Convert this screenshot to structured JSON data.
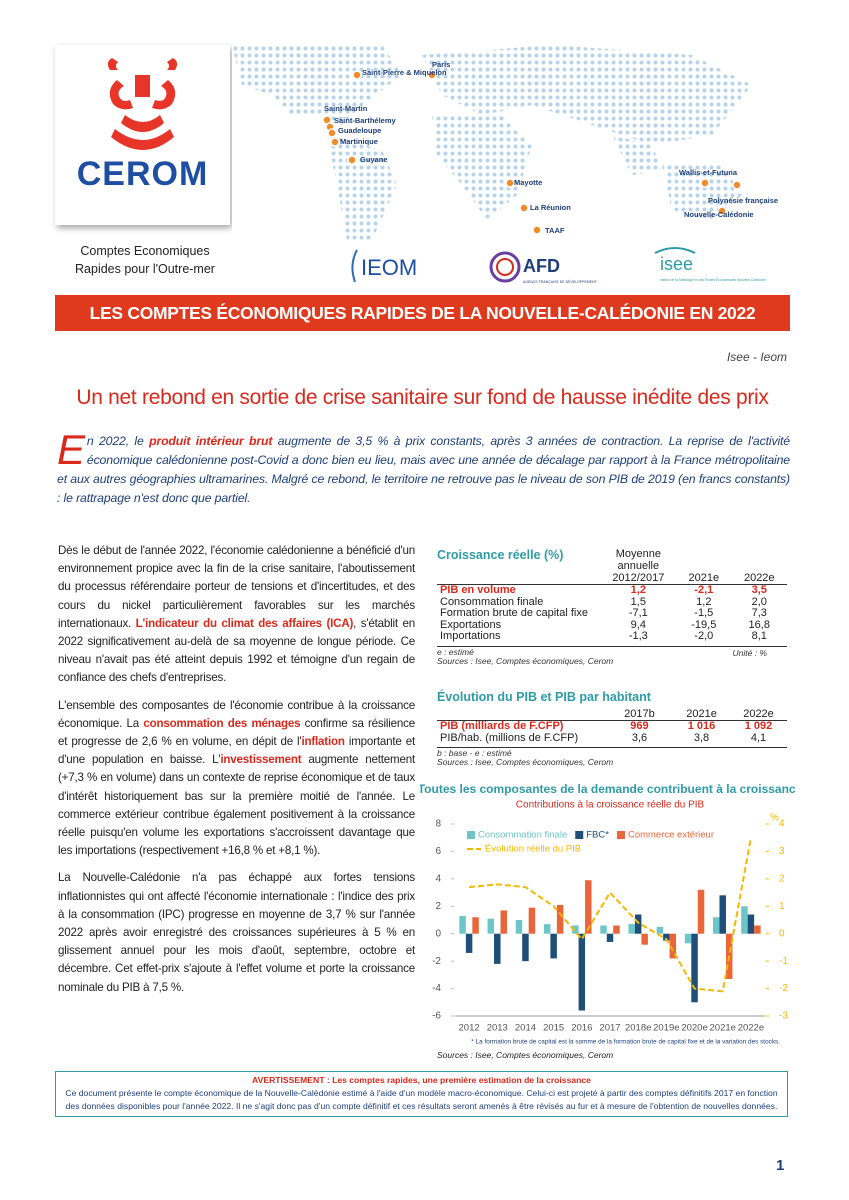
{
  "header": {
    "logo_text": "CEROM",
    "tagline": [
      "Comptes Economiques",
      "Rapides pour l'Outre-mer"
    ],
    "map_places": [
      "Saint-Pierre & Miquelon",
      "Paris",
      "Saint-Martin",
      "Saint-Barthélemy",
      "Guadeloupe",
      "Martinique",
      "Guyane",
      "Mayotte",
      "La Réunion",
      "TAAF",
      "Wallis-et-Futuna",
      "Polynésie française",
      "Nouvelle-Calédonie"
    ],
    "partner_logos": [
      "IEOM",
      "AFD",
      "AGENCE FRANÇAISE DE DÉVELOPPEMENT",
      "isee",
      "Institut de la Statistique et des Études Économiques Nouvelle-Calédonie"
    ]
  },
  "banner": "LES COMPTES ÉCONOMIQUES RAPIDES DE LA NOUVELLE-CALÉDONIE EN 2022",
  "byline": "Isee - Ieom",
  "headline": "Un net rebond en sortie de crise sanitaire sur fond de hausse inédite des prix",
  "intro": {
    "dropcap": "E",
    "segments": [
      "n 2022, le ",
      "produit intérieur brut",
      " augmente de 3,5 % à prix constants, après 3 années de contraction. La reprise de l'activité économique calédonienne post-Covid a donc bien eu lieu, mais avec une année de décalage par rapport à la France métropolitaine et aux autres géographies ultramarines. Malgré ce rebond, le territoire ne retrouve pas le niveau de son PIB de 2019 (en francs constants) : le rattrapage n'est donc que partiel."
    ]
  },
  "body": [
    [
      "Dès le début de l'année 2022, l'économie calédonienne a bénéficié d'un environnement propice avec la fin de la crise sanitaire, l'aboutissement du processus référendaire porteur de tensions et d'incertitudes, et des cours du nickel particulièrement favorables sur les marchés internationaux. ",
      "L'indicateur du climat des affaires (ICA)",
      ", s'établit en 2022 significativement au-delà de sa moyenne de longue période. Ce niveau n'avait pas été atteint depuis 1992 et témoigne d'un regain de confiance des chefs d'entreprises."
    ],
    [
      "L'ensemble des composantes de l'économie contribue à la croissance économique. La ",
      "consommation des ménages",
      " confirme sa résilience et progresse de 2,6 % en volume, en dépit de l'",
      "inflation",
      " importante et d'une population en baisse. L'",
      "investissement",
      " augmente nettement (+7,3 % en volume) dans un contexte de reprise économique et de taux d'intérêt historiquement bas sur la première moitié de l'année. Le commerce extérieur contribue également positivement à la croissance réelle puisqu'en volume les exportations s'accroissent davantage que les importations (respectivement +16,8 % et +8,1 %)."
    ],
    [
      "La Nouvelle-Calédonie n'a pas échappé aux fortes tensions inflationnistes qui ont affecté l'économie internationale : l'indice des prix à la consommation (IPC) progresse en moyenne de 3,7 % sur l'année 2022 après avoir enregistré des croissances supérieures à 5 % en glissement annuel pour les mois d'août, septembre, octobre et décembre. Cet effet-prix s'ajoute à l'effet volume et porte la croissance nominale du PIB à 7,5 %."
    ]
  ],
  "table1": {
    "title": "Croissance réelle (%)",
    "headers": [
      "Moyenne annuelle 2012/2017",
      "2021e",
      "2022e"
    ],
    "rows": [
      [
        "PIB en volume",
        "1,2",
        "-2,1",
        "3,5"
      ],
      [
        "Consommation finale",
        "1,5",
        "1,2",
        "2,0"
      ],
      [
        "Formation brute de capital fixe",
        "-7,1",
        "-1,5",
        "7,3"
      ],
      [
        "Exportations",
        "9,4",
        "-19,5",
        "16,8"
      ],
      [
        "Importations",
        "-1,3",
        "-2,0",
        "8,1"
      ]
    ],
    "notes": [
      "e : estimé",
      "Sources : Isee, Comptes économiques, Cerom"
    ],
    "unit": "Unité : %"
  },
  "table2": {
    "title": "Évolution du PIB et PIB par habitant",
    "headers": [
      "2017b",
      "2021e",
      "2022e"
    ],
    "rows": [
      [
        "PIB (milliards de F.CFP)",
        "969",
        "1 016",
        "1 092"
      ],
      [
        "PIB/hab. (millions de F.CFP)",
        "3,6",
        "3,8",
        "4,1"
      ]
    ],
    "notes": [
      "b : base - e : estimé",
      "Sources : Isee, Comptes économiques, Cerom"
    ]
  },
  "chart_data": {
    "type": "bar",
    "title": "Toutes les composantes de la demande contribuent à la croissance",
    "subtitle": "Contributions à la croissance réelle du PIB",
    "categories": [
      "2012",
      "2013",
      "2014",
      "2015",
      "2016",
      "2017",
      "2018e",
      "2019e",
      "2020e",
      "2021e",
      "2022e"
    ],
    "series": [
      {
        "name": "Consommation finale",
        "color": "#6cc5c8",
        "values": [
          1.3,
          1.1,
          1.0,
          0.7,
          0.6,
          0.6,
          0.7,
          0.5,
          -0.7,
          1.2,
          2.0
        ]
      },
      {
        "name": "FBC*",
        "color": "#1f4e79",
        "values": [
          -1.4,
          -2.2,
          -2.0,
          -1.8,
          -5.6,
          -0.6,
          1.4,
          -0.5,
          -5.0,
          2.8,
          1.4
        ]
      },
      {
        "name": "Commerce extérieur",
        "color": "#e8663a",
        "values": [
          1.2,
          1.7,
          1.9,
          2.1,
          3.9,
          0.6,
          -0.8,
          -1.8,
          3.2,
          -3.3,
          0.6
        ]
      },
      {
        "name": "Évolution réelle du PIB",
        "color": "#f5b800",
        "type": "line",
        "dashed": true,
        "axis": "y2",
        "values": [
          1.7,
          1.8,
          1.7,
          1.0,
          -0.2,
          1.5,
          0.4,
          -0.2,
          -2.0,
          -2.1,
          3.5
        ]
      }
    ],
    "ylim": [
      -6,
      8
    ],
    "yticks": [
      -6,
      -4,
      -2,
      0,
      2,
      4,
      6,
      8
    ],
    "y2lim": [
      -3,
      4
    ],
    "y2ticks": [
      -3,
      -2,
      -1,
      0,
      1,
      2,
      3,
      4
    ],
    "y2label": "%",
    "grid": false,
    "legend": "top-left",
    "footnote": "* La formation brute de capital est la somme de la formation brute de capital fixe et de la variation des stocks.",
    "source": "Sources : Isee, Comptes économiques, Cerom"
  },
  "notice": {
    "title": "AVERTISSEMENT : Les comptes rapides, une première estimation de la croissance",
    "text": "Ce document présente le compte économique de la Nouvelle-Calédonie estimé à l'aide d'un modèle macro-économique. Celui-ci est projeté à partir des comptes définitifs 2017 en fonction des données disponibles pour l'année 2022. Il ne s'agit donc pas d'un compte définitif et ces résultats seront amenés à être révisés au fur et à mesure de l'obtention de nouvelles données."
  },
  "page_number": "1"
}
